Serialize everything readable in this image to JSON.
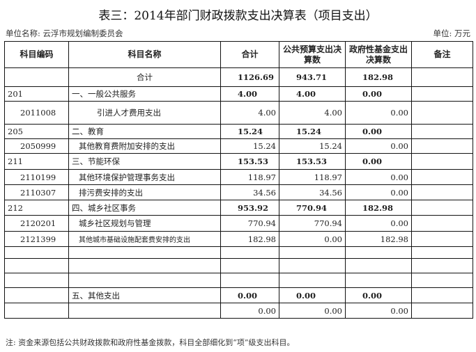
{
  "title": "表三：2014年部门财政拨款支出决算表（项目支出）",
  "unit_name": "单位名称: 云浮市规划编制委员会",
  "unit": "单位: 万元",
  "headers": [
    "科目编码",
    "科目名称",
    "合计",
    "公共预算支出决算数",
    "政府性基金支出决算数",
    "备注"
  ],
  "rows": [
    {
      "type": "total",
      "code": "",
      "name": "合计",
      "total": "1126.69",
      "public": "943.71",
      "fund": "182.98",
      "note": ""
    },
    {
      "type": "cat",
      "code": "201",
      "name": "一、一般公共服务",
      "total": "4.00",
      "public": "4.00",
      "fund": "0.00",
      "note": ""
    },
    {
      "type": "item",
      "code": "2011008",
      "name": "引进人才费用支出",
      "total": "4.00",
      "public": "4.00",
      "fund": "0.00",
      "note": ""
    },
    {
      "type": "cat",
      "code": "205",
      "name": "二、教育",
      "total": "15.24",
      "public": "15.24",
      "fund": "0.00",
      "note": ""
    },
    {
      "type": "item",
      "code": "2050999",
      "name": "其他教育费附加安排的支出",
      "total": "15.24",
      "public": "15.24",
      "fund": "0.00",
      "note": ""
    },
    {
      "type": "cat",
      "code": "211",
      "name": "三、节能环保",
      "total": "153.53",
      "public": "153.53",
      "fund": "0.00",
      "note": ""
    },
    {
      "type": "item",
      "code": "2110199",
      "name": "其他环境保护管理事务支出",
      "total": "118.97",
      "public": "118.97",
      "fund": "0.00",
      "note": ""
    },
    {
      "type": "item",
      "code": "2110307",
      "name": "排污费安排的支出",
      "total": "34.56",
      "public": "34.56",
      "fund": "0.00",
      "note": ""
    },
    {
      "type": "cat",
      "code": "212",
      "name": "四、城乡社区事务",
      "total": "953.92",
      "public": "770.94",
      "fund": "182.98",
      "note": ""
    },
    {
      "type": "item",
      "code": "2120201",
      "name": "城乡社区规划与管理",
      "total": "770.94",
      "public": "770.94",
      "fund": "0.00",
      "note": ""
    },
    {
      "type": "item",
      "code": "2121399",
      "name": "其他城市基础设施配套费安排的支出",
      "total": "182.98",
      "public": "0.00",
      "fund": "182.98",
      "note": ""
    },
    {
      "type": "blank",
      "code": "",
      "name": "",
      "total": "",
      "public": "",
      "fund": "",
      "note": ""
    },
    {
      "type": "blank",
      "code": "",
      "name": "",
      "total": "",
      "public": "",
      "fund": "",
      "note": ""
    },
    {
      "type": "blank",
      "code": "",
      "name": "",
      "total": "",
      "public": "",
      "fund": "",
      "note": ""
    },
    {
      "type": "cat",
      "code": "",
      "name": "五、其他支出",
      "total": "0.00",
      "public": "0.00",
      "fund": "0.00",
      "note": ""
    },
    {
      "type": "item",
      "code": "",
      "name": "",
      "total": "0.00",
      "public": "0.00",
      "fund": "0.00",
      "note": ""
    }
  ],
  "footnote": "注: 资金来源包括公共财政拨款和政府性基金拨款，科目全部细化到“项”级支出科目。"
}
